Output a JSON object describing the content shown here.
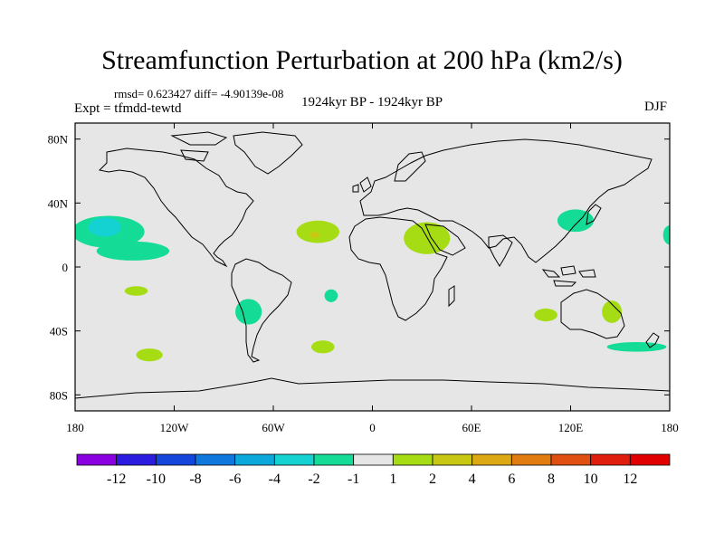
{
  "title": "Streamfunction Perturbation at 200 hPa (km2/s)",
  "stats_line": "rmsd= 0.623427 diff= -4.90139e-08",
  "experiment": "Expt = tfmdd-tewtd",
  "period": "1924kyr BP - 1924kyr BP",
  "season": "DJF",
  "chart_data": {
    "type": "contour-map",
    "variable": "Streamfunction perturbation",
    "level": "200 hPa",
    "units": "km2/s",
    "x_range": [
      -180,
      180
    ],
    "y_range": [
      -90,
      90
    ],
    "x_ticks": [
      {
        "value": -180,
        "label": "180"
      },
      {
        "value": -120,
        "label": "120W"
      },
      {
        "value": -60,
        "label": "60W"
      },
      {
        "value": 0,
        "label": "0"
      },
      {
        "value": 60,
        "label": "60E"
      },
      {
        "value": 120,
        "label": "120E"
      },
      {
        "value": 180,
        "label": "180"
      }
    ],
    "y_ticks": [
      {
        "value": 80,
        "label": "80N"
      },
      {
        "value": 40,
        "label": "40N"
      },
      {
        "value": 0,
        "label": "0"
      },
      {
        "value": -40,
        "label": "40S"
      },
      {
        "value": -80,
        "label": "80S"
      }
    ],
    "colorbar": {
      "labels": [
        "-12",
        "-10",
        "-8",
        "-6",
        "-4",
        "-2",
        "-1",
        "1",
        "2",
        "4",
        "6",
        "8",
        "10",
        "12"
      ],
      "colors": [
        "#8a00e0",
        "#2c1ce0",
        "#1446dc",
        "#1078dc",
        "#0ca8dc",
        "#14d2d2",
        "#14dc96",
        "#e6e6e6",
        "#a6dc14",
        "#c8c814",
        "#dca814",
        "#e07c10",
        "#e05010",
        "#e01e0e",
        "#e00000"
      ]
    },
    "anomalies": [
      {
        "lon": -160,
        "lat": 22,
        "rx": 22,
        "ry": 10,
        "value": -1.5,
        "color": "#14dc96"
      },
      {
        "lon": -145,
        "lat": 10,
        "rx": 22,
        "ry": 6,
        "value": -1.5,
        "color": "#14dc96"
      },
      {
        "lon": -162,
        "lat": 25,
        "rx": 10,
        "ry": 6,
        "value": -3,
        "color": "#14d2d2"
      },
      {
        "lon": -143,
        "lat": -15,
        "rx": 7,
        "ry": 3,
        "value": 1.5,
        "color": "#a6dc14"
      },
      {
        "lon": -135,
        "lat": -55,
        "rx": 8,
        "ry": 4,
        "value": 1.5,
        "color": "#a6dc14"
      },
      {
        "lon": -75,
        "lat": -28,
        "rx": 8,
        "ry": 8,
        "value": -1.5,
        "color": "#14dc96"
      },
      {
        "lon": -33,
        "lat": 22,
        "rx": 13,
        "ry": 7,
        "value": 1.5,
        "color": "#a6dc14"
      },
      {
        "lon": -35,
        "lat": 20,
        "rx": 3,
        "ry": 2,
        "value": 3,
        "color": "#c8c814"
      },
      {
        "lon": -25,
        "lat": -18,
        "rx": 4,
        "ry": 4,
        "value": -1.5,
        "color": "#14dc96"
      },
      {
        "lon": -30,
        "lat": -50,
        "rx": 7,
        "ry": 4,
        "value": 1.5,
        "color": "#a6dc14"
      },
      {
        "lon": 33,
        "lat": 18,
        "rx": 14,
        "ry": 10,
        "value": 1.5,
        "color": "#a6dc14"
      },
      {
        "lon": 123,
        "lat": 29,
        "rx": 11,
        "ry": 7,
        "value": -1.5,
        "color": "#14dc96"
      },
      {
        "lon": 105,
        "lat": -30,
        "rx": 7,
        "ry": 4,
        "value": 1.5,
        "color": "#a6dc14"
      },
      {
        "lon": 145,
        "lat": -28,
        "rx": 6,
        "ry": 7,
        "value": 1.5,
        "color": "#a6dc14"
      },
      {
        "lon": 160,
        "lat": -50,
        "rx": 18,
        "ry": 3,
        "value": -1.5,
        "color": "#14dc96"
      },
      {
        "lon": 180,
        "lat": 20,
        "rx": 4,
        "ry": 6,
        "value": -1.5,
        "color": "#14dc96"
      }
    ]
  }
}
